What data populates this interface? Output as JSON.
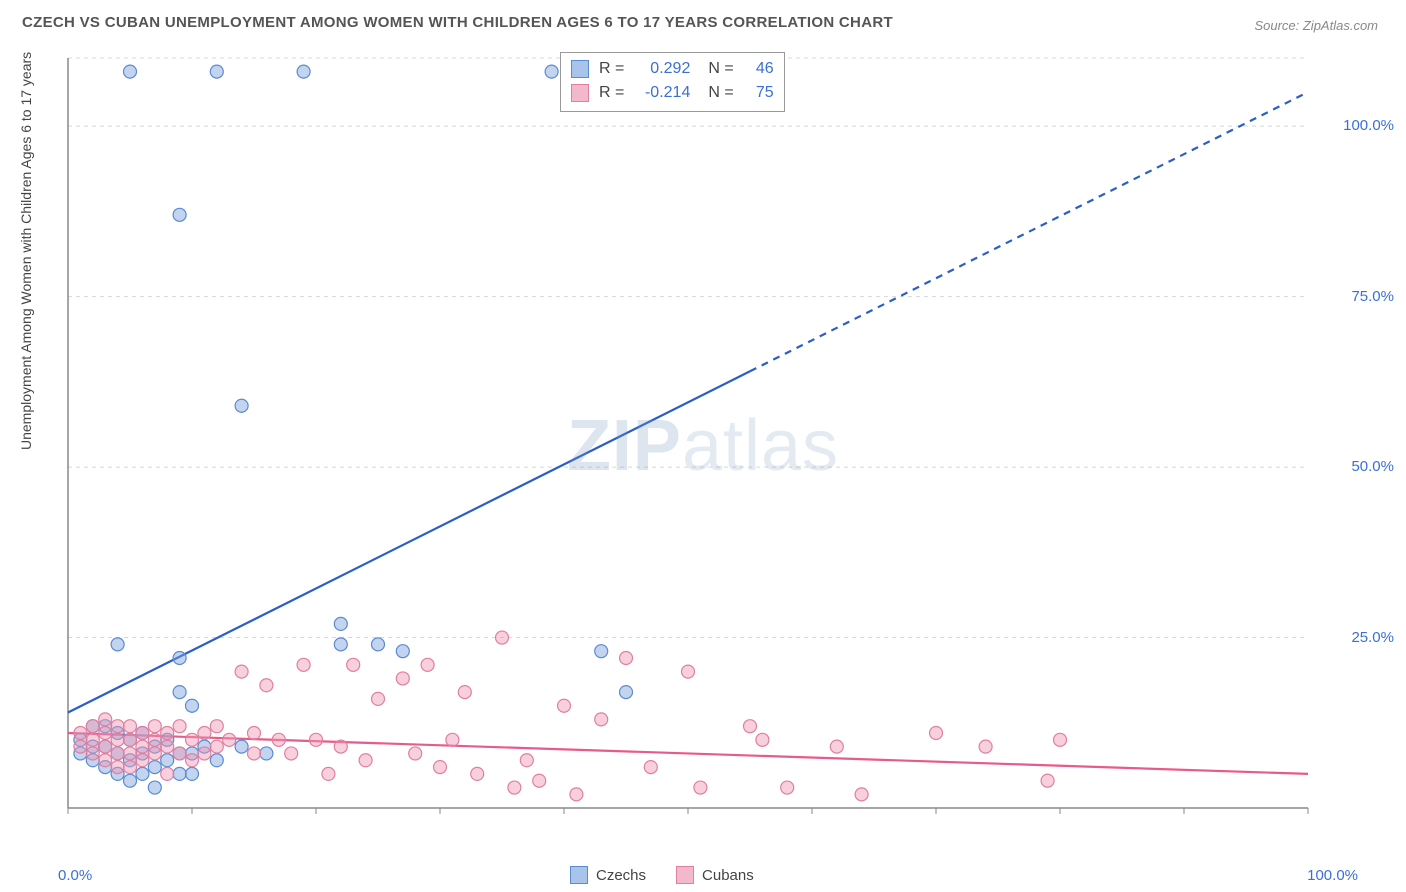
{
  "title": "CZECH VS CUBAN UNEMPLOYMENT AMONG WOMEN WITH CHILDREN AGES 6 TO 17 YEARS CORRELATION CHART",
  "source": "Source: ZipAtlas.com",
  "ylabel": "Unemployment Among Women with Children Ages 6 to 17 years",
  "watermark": {
    "zip": "ZIP",
    "atlas": "atlas"
  },
  "chart": {
    "type": "scatter",
    "xlim": [
      0,
      100
    ],
    "ylim": [
      0,
      110
    ],
    "xticks": [
      0,
      10,
      20,
      30,
      40,
      50,
      60,
      70,
      80,
      90,
      100
    ],
    "ytick_labels": [
      {
        "v": 25,
        "label": "25.0%"
      },
      {
        "v": 50,
        "label": "50.0%"
      },
      {
        "v": 75,
        "label": "75.0%"
      },
      {
        "v": 100,
        "label": "100.0%"
      }
    ],
    "x_axis_labels": {
      "left": "0.0%",
      "right": "100.0%"
    },
    "grid_color": "#d8d8d8",
    "grid_dash": "4,4",
    "axis_color": "#888",
    "background_color": "#ffffff",
    "marker_radius": 6.5,
    "marker_stroke_width": 1.2,
    "line_width": 2.2,
    "series": [
      {
        "name": "Czechs",
        "color_fill": "rgba(120,160,220,0.45)",
        "color_stroke": "#5a8bd0",
        "swatch_fill": "#a9c4ea",
        "swatch_stroke": "#5a8bd0",
        "R": "0.292",
        "N": "46",
        "trend": {
          "x1": 0,
          "y1": 14,
          "x2": 100,
          "y2": 105,
          "solid_until_x": 55,
          "color": "#2a5fc9"
        },
        "points": [
          [
            5,
            108
          ],
          [
            12,
            108
          ],
          [
            19,
            108
          ],
          [
            39,
            108
          ],
          [
            9,
            87
          ],
          [
            14,
            59
          ],
          [
            4,
            24
          ],
          [
            9,
            22
          ],
          [
            9,
            17
          ],
          [
            10,
            15
          ],
          [
            22,
            27
          ],
          [
            22,
            24
          ],
          [
            25,
            24
          ],
          [
            27,
            23
          ],
          [
            43,
            23
          ],
          [
            45,
            17
          ],
          [
            1,
            10
          ],
          [
            1,
            8
          ],
          [
            2,
            12
          ],
          [
            2,
            9
          ],
          [
            2,
            7
          ],
          [
            3,
            12
          ],
          [
            3,
            9
          ],
          [
            3,
            6
          ],
          [
            4,
            11
          ],
          [
            4,
            8
          ],
          [
            4,
            5
          ],
          [
            5,
            10
          ],
          [
            5,
            7
          ],
          [
            5,
            4
          ],
          [
            6,
            11
          ],
          [
            6,
            8
          ],
          [
            6,
            5
          ],
          [
            7,
            9
          ],
          [
            7,
            6
          ],
          [
            7,
            3
          ],
          [
            8,
            10
          ],
          [
            8,
            7
          ],
          [
            9,
            8
          ],
          [
            9,
            5
          ],
          [
            10,
            8
          ],
          [
            10,
            5
          ],
          [
            11,
            9
          ],
          [
            12,
            7
          ],
          [
            14,
            9
          ],
          [
            16,
            8
          ]
        ]
      },
      {
        "name": "Cubans",
        "color_fill": "rgba(240,150,180,0.45)",
        "color_stroke": "#e07fa0",
        "swatch_fill": "#f4b8cc",
        "swatch_stroke": "#e07fa0",
        "R": "-0.214",
        "N": "75",
        "trend": {
          "x1": 0,
          "y1": 11,
          "x2": 100,
          "y2": 5,
          "solid_until_x": 100,
          "color": "#e85a8a"
        },
        "points": [
          [
            1,
            11
          ],
          [
            1,
            9
          ],
          [
            2,
            12
          ],
          [
            2,
            10
          ],
          [
            2,
            8
          ],
          [
            3,
            13
          ],
          [
            3,
            11
          ],
          [
            3,
            9
          ],
          [
            3,
            7
          ],
          [
            4,
            12
          ],
          [
            4,
            10
          ],
          [
            4,
            8
          ],
          [
            4,
            6
          ],
          [
            5,
            12
          ],
          [
            5,
            10
          ],
          [
            5,
            8
          ],
          [
            5,
            6
          ],
          [
            6,
            11
          ],
          [
            6,
            9
          ],
          [
            6,
            7
          ],
          [
            7,
            12
          ],
          [
            7,
            10
          ],
          [
            7,
            8
          ],
          [
            8,
            11
          ],
          [
            8,
            9
          ],
          [
            8,
            5
          ],
          [
            9,
            12
          ],
          [
            9,
            8
          ],
          [
            10,
            10
          ],
          [
            10,
            7
          ],
          [
            11,
            11
          ],
          [
            11,
            8
          ],
          [
            12,
            12
          ],
          [
            12,
            9
          ],
          [
            13,
            10
          ],
          [
            14,
            20
          ],
          [
            15,
            11
          ],
          [
            15,
            8
          ],
          [
            16,
            18
          ],
          [
            17,
            10
          ],
          [
            18,
            8
          ],
          [
            19,
            21
          ],
          [
            20,
            10
          ],
          [
            21,
            5
          ],
          [
            22,
            9
          ],
          [
            23,
            21
          ],
          [
            24,
            7
          ],
          [
            25,
            16
          ],
          [
            27,
            19
          ],
          [
            28,
            8
          ],
          [
            29,
            21
          ],
          [
            30,
            6
          ],
          [
            31,
            10
          ],
          [
            32,
            17
          ],
          [
            33,
            5
          ],
          [
            35,
            25
          ],
          [
            36,
            3
          ],
          [
            37,
            7
          ],
          [
            38,
            4
          ],
          [
            40,
            15
          ],
          [
            41,
            2
          ],
          [
            43,
            13
          ],
          [
            45,
            22
          ],
          [
            47,
            6
          ],
          [
            50,
            20
          ],
          [
            51,
            3
          ],
          [
            55,
            12
          ],
          [
            56,
            10
          ],
          [
            58,
            3
          ],
          [
            62,
            9
          ],
          [
            64,
            2
          ],
          [
            70,
            11
          ],
          [
            74,
            9
          ],
          [
            79,
            4
          ],
          [
            80,
            10
          ]
        ]
      }
    ]
  },
  "legend_bottom": [
    {
      "name": "Czechs",
      "fill": "#a9c4ea",
      "stroke": "#5a8bd0"
    },
    {
      "name": "Cubans",
      "fill": "#f4b8cc",
      "stroke": "#e07fa0"
    }
  ]
}
